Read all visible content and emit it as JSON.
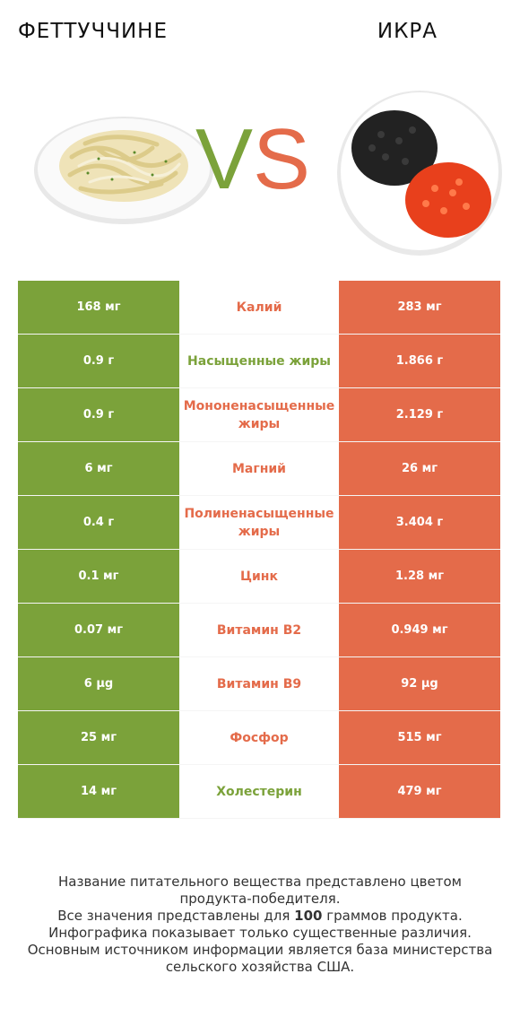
{
  "left_food": {
    "name": "ФЕТТУЧЧИНЕ",
    "color": "#7ba23a"
  },
  "right_food": {
    "name": "ИКРА",
    "color": "#e46b4a"
  },
  "vs": {
    "v": "V",
    "s": "S"
  },
  "rows": [
    {
      "left": "168 мг",
      "nutrient": "Калий",
      "right": "283 мг",
      "winner": "right"
    },
    {
      "left": "0.9 г",
      "nutrient": "Насыщенные жиры",
      "right": "1.866 г",
      "winner": "left"
    },
    {
      "left": "0.9 г",
      "nutrient": "Мононенасыщенные жиры",
      "right": "2.129 г",
      "winner": "right"
    },
    {
      "left": "6 мг",
      "nutrient": "Магний",
      "right": "26 мг",
      "winner": "right"
    },
    {
      "left": "0.4 г",
      "nutrient": "Полиненасыщенные жиры",
      "right": "3.404 г",
      "winner": "right"
    },
    {
      "left": "0.1 мг",
      "nutrient": "Цинк",
      "right": "1.28 мг",
      "winner": "right"
    },
    {
      "left": "0.07 мг",
      "nutrient": "Витамин B2",
      "right": "0.949 мг",
      "winner": "right"
    },
    {
      "left": "6 µg",
      "nutrient": "Витамин B9",
      "right": "92 µg",
      "winner": "right"
    },
    {
      "left": "25 мг",
      "nutrient": "Фосфор",
      "right": "515 мг",
      "winner": "right"
    },
    {
      "left": "14 мг",
      "nutrient": "Холестерин",
      "right": "479 мг",
      "winner": "left"
    }
  ],
  "footer": {
    "line1": "Название питательного вещества представлено цветом",
    "line2": "продукта-победителя.",
    "line3_pre": "Все значения представлены для ",
    "line3_bold": "100",
    "line3_post": " граммов продукта.",
    "line4": "Инфографика показывает только существенные различия.",
    "line5": "Основным источником информации является база министерства",
    "line6": "сельского хозяйства США."
  }
}
